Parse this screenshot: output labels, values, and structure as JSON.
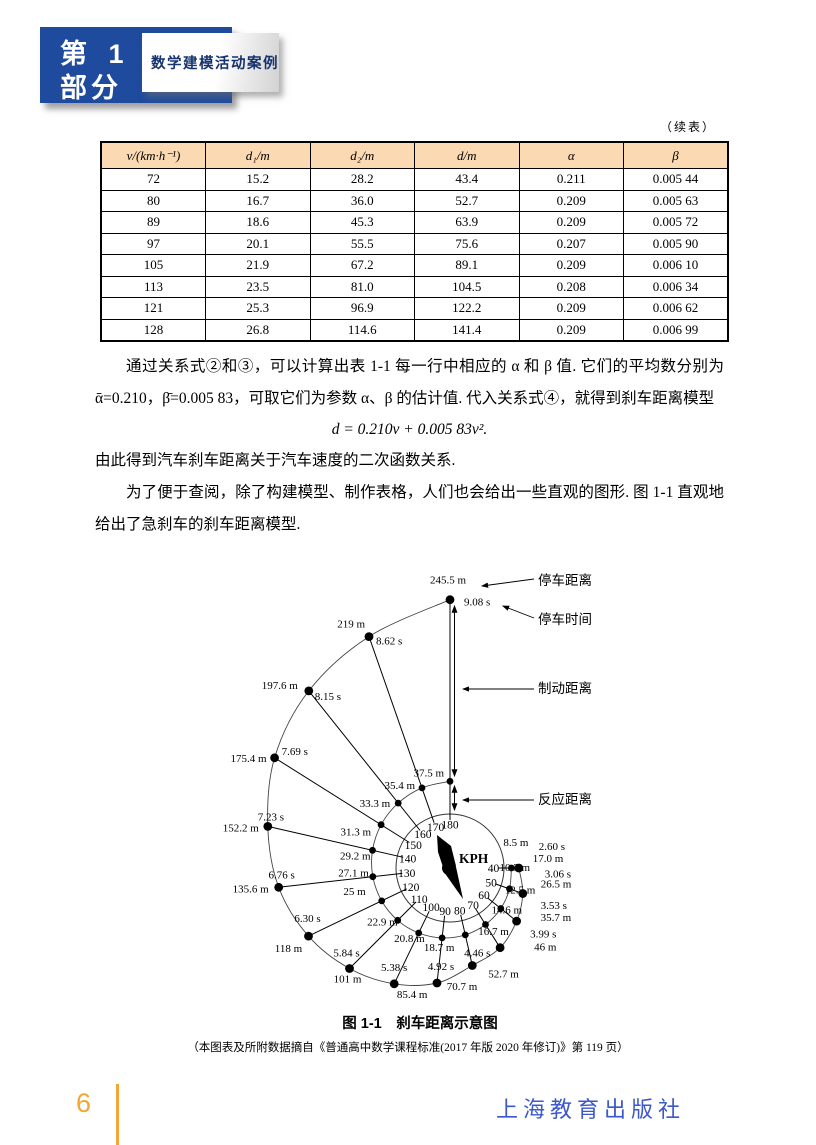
{
  "header": {
    "part_line1": "第 1",
    "part_line2": "部分",
    "subtitle": "数学建模活动案例"
  },
  "table": {
    "note": "（续表）",
    "headers": [
      "v/(km·h⁻¹)",
      "d₁/m",
      "d₂/m",
      "d/m",
      "α",
      "β"
    ],
    "rows": [
      [
        "72",
        "15.2",
        "28.2",
        "43.4",
        "0.211",
        "0.005 44"
      ],
      [
        "80",
        "16.7",
        "36.0",
        "52.7",
        "0.209",
        "0.005 63"
      ],
      [
        "89",
        "18.6",
        "45.3",
        "63.9",
        "0.209",
        "0.005 72"
      ],
      [
        "97",
        "20.1",
        "55.5",
        "75.6",
        "0.207",
        "0.005 90"
      ],
      [
        "105",
        "21.9",
        "67.2",
        "89.1",
        "0.209",
        "0.006 10"
      ],
      [
        "113",
        "23.5",
        "81.0",
        "104.5",
        "0.208",
        "0.006 34"
      ],
      [
        "121",
        "25.3",
        "96.9",
        "122.2",
        "0.209",
        "0.006 62"
      ],
      [
        "128",
        "26.8",
        "114.6",
        "141.4",
        "0.209",
        "0.006 99"
      ]
    ]
  },
  "paragraphs": {
    "p1": "通过关系式②和③，可以计算出表 1-1 每一行中相应的 α 和 β 值. 它们的平均数分别为 ᾱ=0.210，β̄=0.005 83，可取它们为参数 α、β 的估计值. 代入关系式④，就得到刹车距离模型",
    "formula": "d = 0.210v + 0.005 83v².",
    "p2": "由此得到汽车刹车距离关于汽车速度的二次函数关系.",
    "p3": "为了便于查阅，除了构建模型、制作表格，人们也会给出一些直观的图形. 图 1-1 直观地给出了急刹车的刹车距离模型."
  },
  "figure": {
    "caption": "图 1-1　刹车距离示意图",
    "source": "（本图表及所附数据摘自《普通高中数学课程标准(2017 年版 2020 年修订)》第 119 页）",
    "dial_unit": "KPH",
    "annotations": {
      "stop_distance": "停车距离",
      "stop_time": "停车时间",
      "braking_distance": "制动距离",
      "reaction_distance": "反应距离"
    }
  },
  "chart_data": {
    "type": "scatter",
    "title": "刹车距离示意图",
    "layout": "polar-spiral-speedometer, speeds on dial 40-180 KPH sweeping 270° clockwise from east to north, radius proportional to distance",
    "dial_label": "KPH",
    "speeds_kph": [
      40,
      50,
      60,
      70,
      80,
      90,
      100,
      110,
      120,
      130,
      140,
      150,
      160,
      170,
      180
    ],
    "series": [
      {
        "name": "反应距离 (m)",
        "values": [
          "8.5",
          "10.3",
          "12.5",
          "14.6",
          "16.7",
          "18.7",
          "20.8",
          "22.9",
          "25",
          "27.1",
          "29.2",
          "31.3",
          "33.3",
          "35.4",
          "37.5"
        ]
      },
      {
        "name": "停车距离 (m)",
        "values": [
          "17.0",
          "26.5",
          "35.7",
          "46",
          "52.7",
          "70.7",
          "85.4",
          "101",
          "118",
          "135.6",
          "152.2",
          "175.4",
          "197.6",
          "219",
          "245.5"
        ]
      },
      {
        "name": "停车时间 (s)",
        "values": [
          "2.60",
          "3.06",
          "3.53",
          "3.99",
          "4.46",
          "4.92",
          "5.38",
          "5.84",
          "6.30",
          "6.76",
          "7.23",
          "7.69",
          "8.15",
          "8.62",
          "9.08"
        ]
      }
    ]
  },
  "footer": {
    "page_number": "6",
    "publisher": "上海教育出版社"
  },
  "colors": {
    "banner_blue": "#1f4b9e",
    "banner_text": "#16336e",
    "table_header_bg": "#fbd9b3",
    "accent_orange": "#f2a633",
    "publisher_blue": "#3d57cc"
  }
}
